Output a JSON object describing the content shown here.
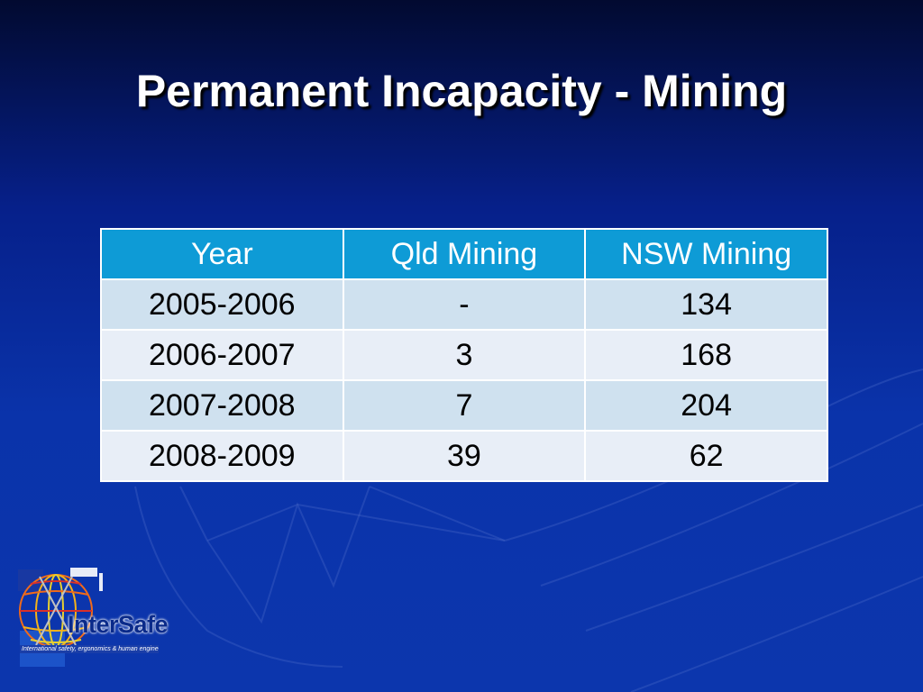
{
  "slide": {
    "title": "Permanent Incapacity - Mining"
  },
  "table": {
    "headers": [
      "Year",
      "Qld Mining",
      "NSW Mining"
    ],
    "rows": [
      [
        "2005-2006",
        "-",
        "134"
      ],
      [
        "2006-2007",
        "3",
        "168"
      ],
      [
        "2007-2008",
        "7",
        "204"
      ],
      [
        "2008-2009",
        "39",
        "62"
      ]
    ]
  },
  "logo": {
    "name": "InterSafe",
    "tagline": "International safety, ergonomics & human engineering",
    "icon": "globe-icon"
  },
  "colors": {
    "background": "#0a33aa",
    "header": "#0e9bd6",
    "row_odd": "#cfe1ef",
    "row_even": "#e8eef7"
  }
}
